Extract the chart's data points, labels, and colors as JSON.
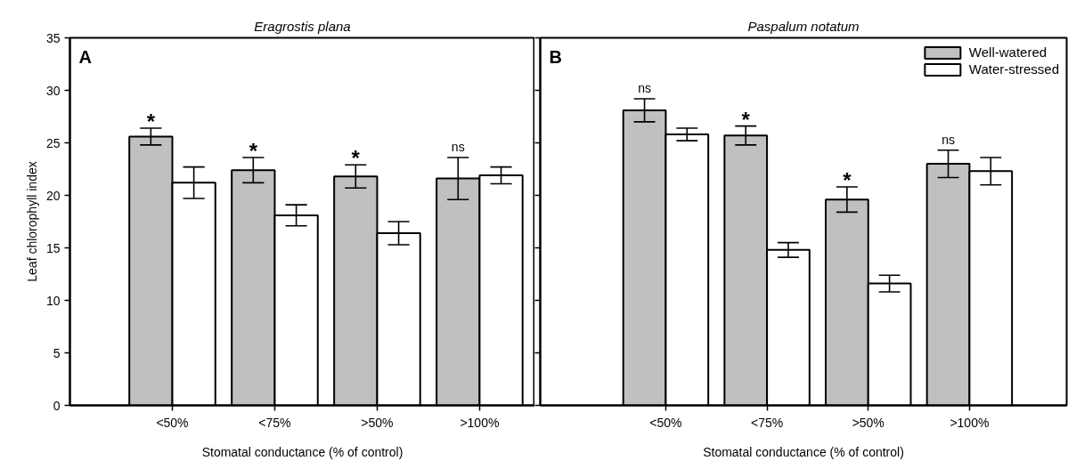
{
  "chart_data": [
    {
      "type": "bar",
      "title": "Eragrostis plana",
      "xlabel": "Stomatal conductance (% of control)",
      "ylabel": "Leaf chlorophyll index",
      "categories": [
        "<50%",
        "<75%",
        ">50%",
        ">100%"
      ],
      "series": [
        {
          "color": "#c0c0c0",
          "values": [
            25.6,
            22.4,
            21.8,
            21.6
          ],
          "errors": [
            0.8,
            1.2,
            1.1,
            2.0
          ]
        },
        {
          "color": "#ffffff",
          "values": [
            21.2,
            18.1,
            16.4,
            21.9
          ],
          "errors": [
            1.5,
            1.0,
            1.1,
            0.8
          ]
        }
      ],
      "ylim": [
        0,
        35
      ],
      "yticks": [
        0,
        5,
        10,
        15,
        20,
        25,
        30,
        35
      ],
      "grid": false,
      "legend": false,
      "annotations": [
        "A",
        "*",
        "*",
        "*",
        "ns"
      ]
    },
    {
      "type": "bar",
      "title": "Paspalum notatum",
      "xlabel": "Stomatal conductance (% of control)",
      "categories": [
        "<50%",
        "<75%",
        ">50%",
        ">100%"
      ],
      "series": [
        {
          "name": "Well-watered",
          "color": "#c0c0c0",
          "values": [
            28.1,
            25.7,
            19.6,
            23.0
          ],
          "errors": [
            1.1,
            0.9,
            1.2,
            1.3
          ]
        },
        {
          "name": "Water-stressed",
          "color": "#ffffff",
          "values": [
            25.8,
            14.8,
            11.6,
            22.3
          ],
          "errors": [
            0.6,
            0.7,
            0.8,
            1.3
          ]
        }
      ],
      "ylim": [
        0,
        35
      ],
      "yticks": [
        0,
        5,
        10,
        15,
        20,
        25,
        30,
        35
      ],
      "tick_labels": "x",
      "grid": false,
      "legend": "top right",
      "annotations": [
        "B",
        "ns",
        "*",
        "*",
        "ns"
      ]
    }
  ]
}
